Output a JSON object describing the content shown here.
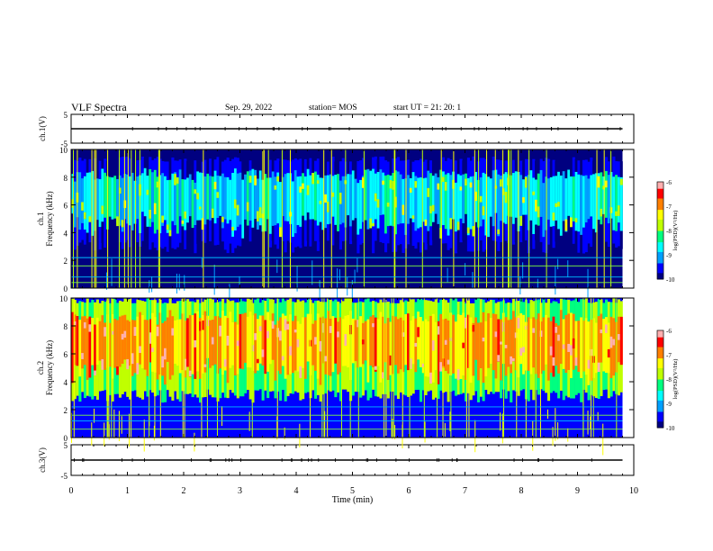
{
  "header": {
    "title": "VLF Spectra",
    "date": "Sep. 29, 2022",
    "station": "station= MOS",
    "start": "start  UT =   21: 20: 1"
  },
  "chart_data": [
    {
      "type": "line",
      "panel": "ch1-waveform",
      "ylabel": "ch.1(V)",
      "ylim": [
        -5,
        5
      ],
      "yticks": [
        "5",
        "-5"
      ],
      "x": [
        0,
        10
      ],
      "values": [
        0,
        0
      ],
      "color": "#000000"
    },
    {
      "type": "heatmap",
      "panel": "ch1-spectrogram",
      "ylabel": "ch.1\nFrequency (kHz)",
      "ylim": [
        0,
        10
      ],
      "yticks": [
        "0",
        "2",
        "4",
        "6",
        "8",
        "10"
      ],
      "xlim": [
        0,
        10
      ],
      "band_khz": [
        2.5,
        9.5
      ],
      "band_level": -9.0,
      "background_level": -10.0,
      "horizontal_lines_khz": [
        0.4,
        0.8,
        1.6,
        2.2
      ],
      "colorbar": {
        "label": "log(PSD)(V²/Hz)",
        "ticks": [
          "-6",
          "-7",
          "-8",
          "-9",
          "-10"
        ],
        "range": [
          -10,
          -6
        ]
      }
    },
    {
      "type": "heatmap",
      "panel": "ch2-spectrogram",
      "ylabel": "ch.2\nFrequency (kHz)",
      "ylim": [
        0,
        10
      ],
      "yticks": [
        "0",
        "2",
        "4",
        "6",
        "8",
        "10"
      ],
      "xlim": [
        0,
        10
      ],
      "band_khz": [
        2.5,
        10
      ],
      "band_level": -7.3,
      "background_level": -9.5,
      "horizontal_lines_khz": [
        0.6,
        1.2,
        1.6,
        2.2
      ],
      "colorbar": {
        "label": "log(PSD)(V²/Hz)",
        "ticks": [
          "-6",
          "-7",
          "-8",
          "-9",
          "-10"
        ],
        "range": [
          -10,
          -6
        ]
      }
    },
    {
      "type": "line",
      "panel": "ch3-waveform",
      "ylabel": "ch.3(V)",
      "ylim": [
        -5,
        5
      ],
      "yticks": [
        "5",
        "-5"
      ],
      "x": [
        0,
        10
      ],
      "values": [
        0,
        0
      ],
      "color": "#000000"
    }
  ],
  "x_axis": {
    "label": "Time (min)",
    "ticks": [
      "0",
      "1",
      "2",
      "3",
      "4",
      "5",
      "6",
      "7",
      "8",
      "9",
      "10"
    ],
    "xlim": [
      0,
      10
    ],
    "data_end": 9.8
  },
  "colormap": [
    "#000000",
    "#000080",
    "#0000ff",
    "#00a0ff",
    "#00ffff",
    "#00ff80",
    "#c0ff00",
    "#ffff00",
    "#ff8000",
    "#ff0000",
    "#ffb0b0",
    "#ffffff"
  ]
}
